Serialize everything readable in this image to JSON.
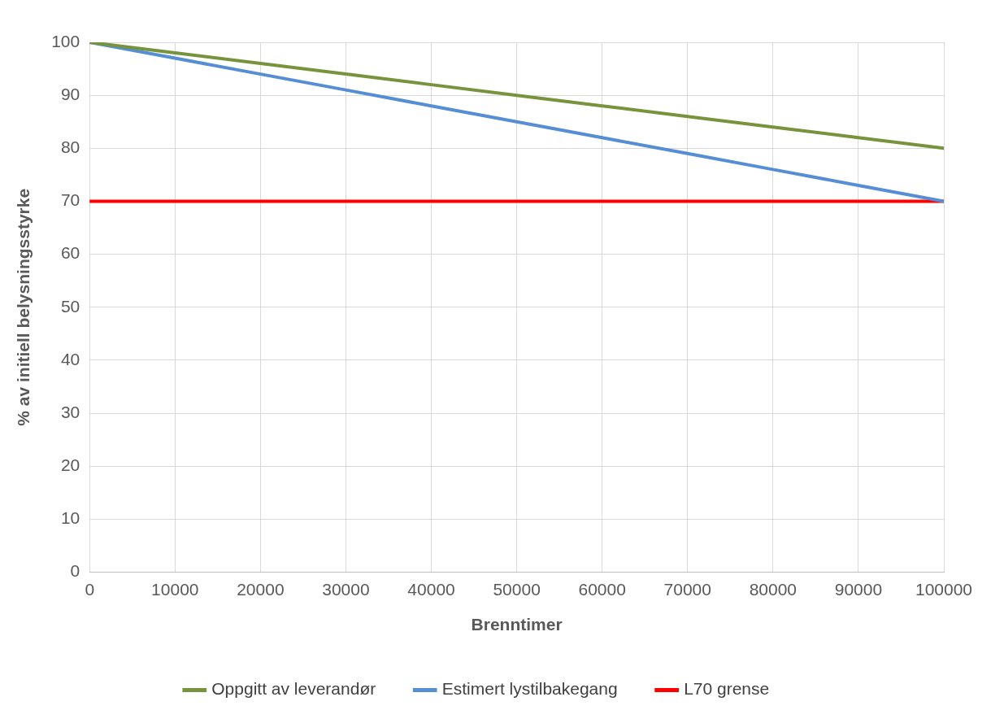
{
  "chart_data": {
    "type": "line",
    "xlabel": "Brenntimer",
    "ylabel": "% av initiell belysningsstyrke",
    "x": [
      0,
      10000,
      20000,
      30000,
      40000,
      50000,
      60000,
      70000,
      80000,
      90000,
      100000
    ],
    "series": [
      {
        "name": "Oppgitt av leverandør",
        "color": "#77933c",
        "values": [
          100,
          98,
          96,
          94,
          92,
          90,
          88,
          86,
          84,
          82,
          80
        ]
      },
      {
        "name": "Estimert lystilbakegang",
        "color": "#558ed5",
        "values": [
          100,
          97,
          94,
          91,
          88,
          85,
          82,
          79,
          76,
          73,
          70
        ]
      },
      {
        "name": "L70 grense",
        "color": "#ff0000",
        "values": [
          70,
          70,
          70,
          70,
          70,
          70,
          70,
          70,
          70,
          70,
          70
        ]
      }
    ],
    "xlim": [
      0,
      100000
    ],
    "xticks": [
      0,
      10000,
      20000,
      30000,
      40000,
      50000,
      60000,
      70000,
      80000,
      90000,
      100000
    ],
    "ylim": [
      0,
      100
    ],
    "yticks": [
      0,
      10,
      20,
      30,
      40,
      50,
      60,
      70,
      80,
      90,
      100
    ],
    "grid": true,
    "legend": "bottom",
    "marker": "none",
    "line_style": "solid"
  }
}
